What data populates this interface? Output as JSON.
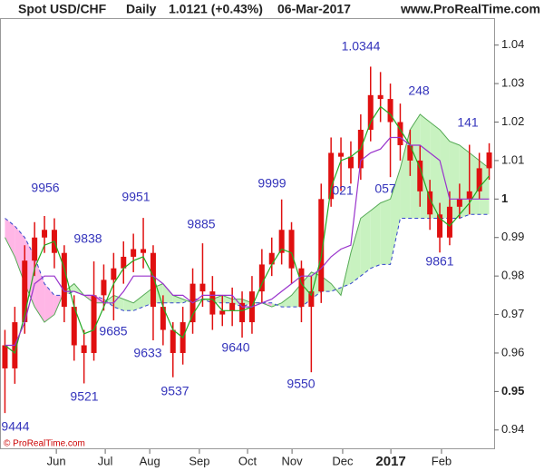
{
  "chart_data": {
    "type": "candlestick",
    "header": {
      "symbol": "Spot USD/CHF",
      "period": "Daily",
      "last": "1.0121 (+0.43%)",
      "date": "06-Mar-2017",
      "site": "www.ProRealTime.com",
      "copyright": "© ProRealTime.com"
    },
    "xlim": [
      0,
      200
    ],
    "ylim": [
      0.935,
      1.047
    ],
    "yticks": [
      0.94,
      0.95,
      0.96,
      0.97,
      0.98,
      0.99,
      1,
      1.01,
      1.02,
      1.03,
      1.04
    ],
    "bold_yticks": [
      0.95,
      1
    ],
    "xticks": [
      {
        "value": 22.8,
        "label": "Jun"
      },
      {
        "value": 42.6,
        "label": "Jul"
      },
      {
        "value": 60.6,
        "label": "Aug"
      },
      {
        "value": 80.7,
        "label": "Sep"
      },
      {
        "value": 100.2,
        "label": "Oct"
      },
      {
        "value": 118.2,
        "label": "Nov"
      },
      {
        "value": 138.7,
        "label": "Dec"
      },
      {
        "value": 158.2,
        "label": "2017"
      },
      {
        "value": 178.7,
        "label": "Feb"
      }
    ],
    "bold_xticks": [
      "2017"
    ],
    "candle_color": "#e01010",
    "x": [
      2,
      6,
      10,
      14,
      18,
      22,
      26,
      30,
      34,
      38,
      42,
      46,
      50,
      54,
      58,
      62,
      66,
      70,
      74,
      78,
      82,
      86,
      90,
      94,
      98,
      102,
      106,
      110,
      114,
      118,
      122,
      126,
      130,
      134,
      138,
      142,
      146,
      150,
      154,
      158,
      162,
      166,
      170,
      174,
      178,
      182,
      186,
      190,
      194,
      198
    ],
    "open": [
      0.962,
      0.956,
      0.968,
      0.984,
      0.99,
      0.992,
      0.986,
      0.972,
      0.962,
      0.96,
      0.975,
      0.979,
      0.982,
      0.985,
      0.987,
      0.986,
      0.972,
      0.966,
      0.96,
      0.968,
      0.978,
      0.976,
      0.97,
      0.971,
      0.973,
      0.968,
      0.976,
      0.983,
      0.986,
      0.992,
      0.982,
      0.972,
      0.976,
      1.0,
      1.012,
      1.011,
      1.008,
      1.018,
      1.027,
      1.026,
      1.02,
      1.014,
      1.01,
      1.002,
      0.996,
      0.99,
      0.998,
      1.0,
      1.002,
      1.008
    ],
    "high": [
      0.966,
      0.972,
      0.988,
      0.994,
      0.9956,
      0.995,
      0.988,
      0.975,
      0.966,
      0.9838,
      0.983,
      0.986,
      0.989,
      0.991,
      0.9951,
      0.988,
      0.975,
      0.968,
      0.972,
      0.982,
      0.9885,
      0.98,
      0.975,
      0.977,
      0.976,
      0.98,
      0.987,
      0.99,
      0.9999,
      0.994,
      0.984,
      0.98,
      1.004,
      1.016,
      1.016,
      1.015,
      1.022,
      1.0344,
      1.033,
      1.03,
      1.0248,
      1.018,
      1.014,
      1.005,
      0.999,
      1.002,
      1.004,
      1.0141,
      1.012,
      1.0145
    ],
    "low": [
      0.9444,
      0.952,
      0.965,
      0.98,
      0.986,
      0.982,
      0.968,
      0.958,
      0.9521,
      0.958,
      0.971,
      0.9685,
      0.978,
      0.981,
      0.982,
      0.9633,
      0.962,
      0.9537,
      0.957,
      0.965,
      0.972,
      0.966,
      0.967,
      0.967,
      0.964,
      0.965,
      0.973,
      0.98,
      0.983,
      0.978,
      0.968,
      0.955,
      0.973,
      0.998,
      1.0021,
      1.004,
      1.005,
      1.015,
      1.02,
      1.0057,
      1.01,
      1.006,
      0.998,
      0.992,
      0.9861,
      0.988,
      0.995,
      0.996,
      1.0,
      1.005
    ],
    "close": [
      0.956,
      0.968,
      0.984,
      0.99,
      0.992,
      0.986,
      0.972,
      0.962,
      0.96,
      0.975,
      0.979,
      0.982,
      0.985,
      0.987,
      0.986,
      0.972,
      0.966,
      0.96,
      0.968,
      0.978,
      0.976,
      0.97,
      0.971,
      0.973,
      0.968,
      0.976,
      0.983,
      0.986,
      0.992,
      0.982,
      0.972,
      0.976,
      1.0,
      1.012,
      1.011,
      1.008,
      1.018,
      1.027,
      1.026,
      1.02,
      1.014,
      1.01,
      1.002,
      0.996,
      0.99,
      0.998,
      1.0,
      1.002,
      1.008,
      1.0121
    ],
    "lines": [
      {
        "color": "#22aa22",
        "values": [
          0.962,
          0.96,
          0.97,
          0.982,
          0.988,
          0.989,
          0.982,
          0.972,
          0.965,
          0.966,
          0.972,
          0.978,
          0.982,
          0.984,
          0.985,
          0.98,
          0.972,
          0.966,
          0.964,
          0.97,
          0.974,
          0.974,
          0.971,
          0.971,
          0.971,
          0.972,
          0.978,
          0.983,
          0.987,
          0.986,
          0.978,
          0.975,
          0.985,
          1.003,
          1.01,
          1.011,
          1.013,
          1.02,
          1.024,
          1.022,
          1.018,
          1.014,
          1.008,
          1.0,
          0.995,
          0.993,
          0.996,
          0.999,
          1.003,
          1.006
        ]
      },
      {
        "color": "#9933cc",
        "values": [
          0.962,
          0.962,
          0.968,
          0.978,
          0.98,
          0.98,
          0.976,
          0.976,
          0.975,
          0.975,
          0.973,
          0.973,
          0.976,
          0.98,
          0.98,
          0.98,
          0.978,
          0.975,
          0.975,
          0.973,
          0.975,
          0.975,
          0.975,
          0.975,
          0.972,
          0.972,
          0.973,
          0.974,
          0.976,
          0.978,
          0.98,
          0.98,
          0.982,
          0.985,
          0.987,
          0.988,
          1.01,
          1.012,
          1.013,
          1.016,
          1.016,
          1.014,
          1.014,
          1.012,
          1.01,
          1.0,
          1.0,
          1.0,
          1.0,
          1.0
        ]
      }
    ],
    "cloud": {
      "up_color": "#c8f2c0",
      "down_color": "#ffb6e6",
      "span_a": {
        "color": "#55aa55",
        "values": [
          0.99,
          0.985,
          0.978,
          0.972,
          0.968,
          0.97,
          0.976,
          0.978,
          0.975,
          0.973,
          0.973,
          0.975,
          0.974,
          0.973,
          0.975,
          0.977,
          0.978,
          0.975,
          0.974,
          0.973,
          0.974,
          0.974,
          0.975,
          0.974,
          0.974,
          0.973,
          0.973,
          0.972,
          0.973,
          0.975,
          0.978,
          0.981,
          0.98,
          0.978,
          0.975,
          0.986,
          0.995,
          0.997,
          0.999,
          1.0,
          1.008,
          1.018,
          1.022,
          1.02,
          1.018,
          1.015,
          1.014,
          1.012,
          1.01,
          1.008
        ]
      },
      "span_b": {
        "color": "#3344cc",
        "values": [
          0.995,
          0.993,
          0.99,
          0.985,
          0.978,
          0.975,
          0.975,
          0.976,
          0.975,
          0.975,
          0.974,
          0.972,
          0.971,
          0.971,
          0.972,
          0.973,
          0.973,
          0.973,
          0.973,
          0.974,
          0.974,
          0.973,
          0.973,
          0.973,
          0.972,
          0.973,
          0.973,
          0.973,
          0.972,
          0.972,
          0.972,
          0.974,
          0.976,
          0.976,
          0.977,
          0.978,
          0.98,
          0.982,
          0.983,
          0.983,
          0.995,
          0.995,
          0.995,
          0.995,
          0.995,
          0.995,
          0.995,
          0.996,
          0.996,
          0.996
        ]
      }
    },
    "annotations": [
      "1.0344",
      "248",
      "141",
      "9956",
      "9951",
      "9999",
      "021",
      "057",
      "9838",
      "9885",
      "9685",
      "9633",
      "9640",
      "9861",
      "9521",
      "9537",
      "9550",
      "9444"
    ]
  }
}
